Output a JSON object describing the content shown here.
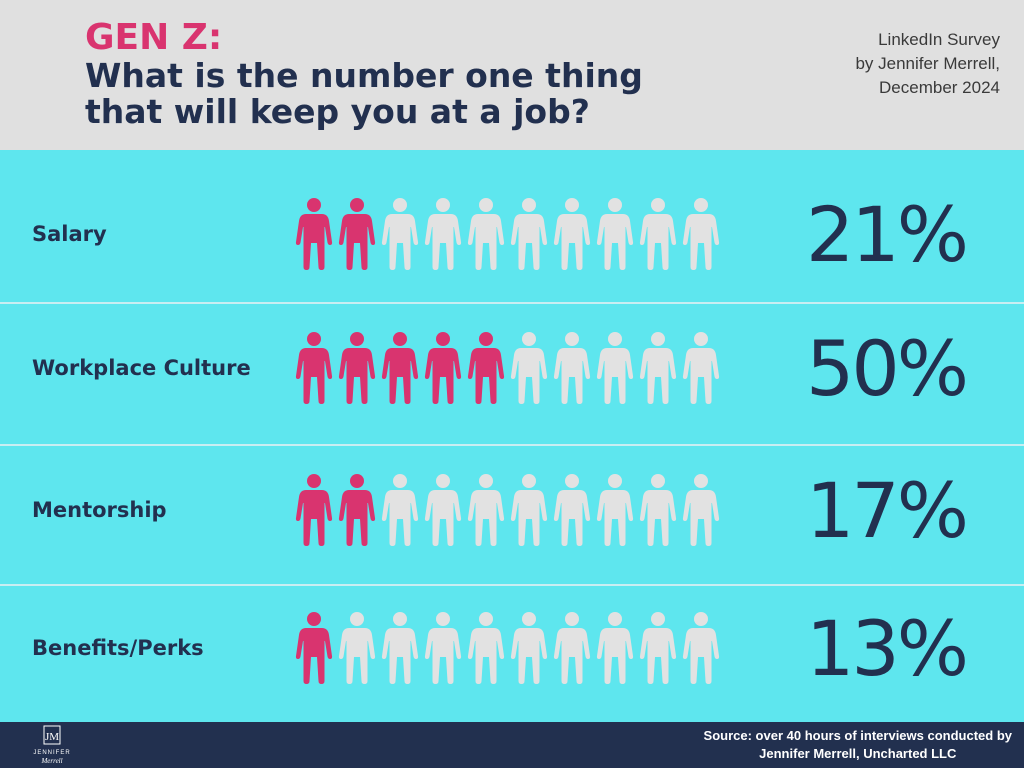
{
  "header": {
    "kicker": "GEN Z:",
    "question_line1": "What is the number one thing",
    "question_line2": "that will keep you at a job?",
    "survey_line1": "LinkedIn Survey",
    "survey_line2": "by Jennifer Merrell,",
    "survey_line3": "December 2024"
  },
  "chart_data": {
    "type": "bar",
    "categories": [
      "Salary",
      "Workplace Culture",
      "Mentorship",
      "Benefits/Perks"
    ],
    "values": [
      21,
      50,
      17,
      13
    ],
    "value_labels": [
      "21%",
      "50%",
      "17%",
      "13%"
    ],
    "icons_highlighted": [
      2,
      5,
      2,
      1
    ],
    "icons_total": 10,
    "unit": "%"
  },
  "colors": {
    "highlight": "#d9346f",
    "muted": "#e2e2e2",
    "background": "#5ee6ee",
    "header_bg": "#e0e0e0",
    "navy": "#22304f"
  },
  "footer": {
    "source_line1": "Source:  over 40 hours of interviews conducted by",
    "source_line2": "Jennifer Merrell, Uncharted LLC",
    "logo_monogram": "JM",
    "logo_name": "JENNIFER",
    "logo_script": "Merrell"
  }
}
